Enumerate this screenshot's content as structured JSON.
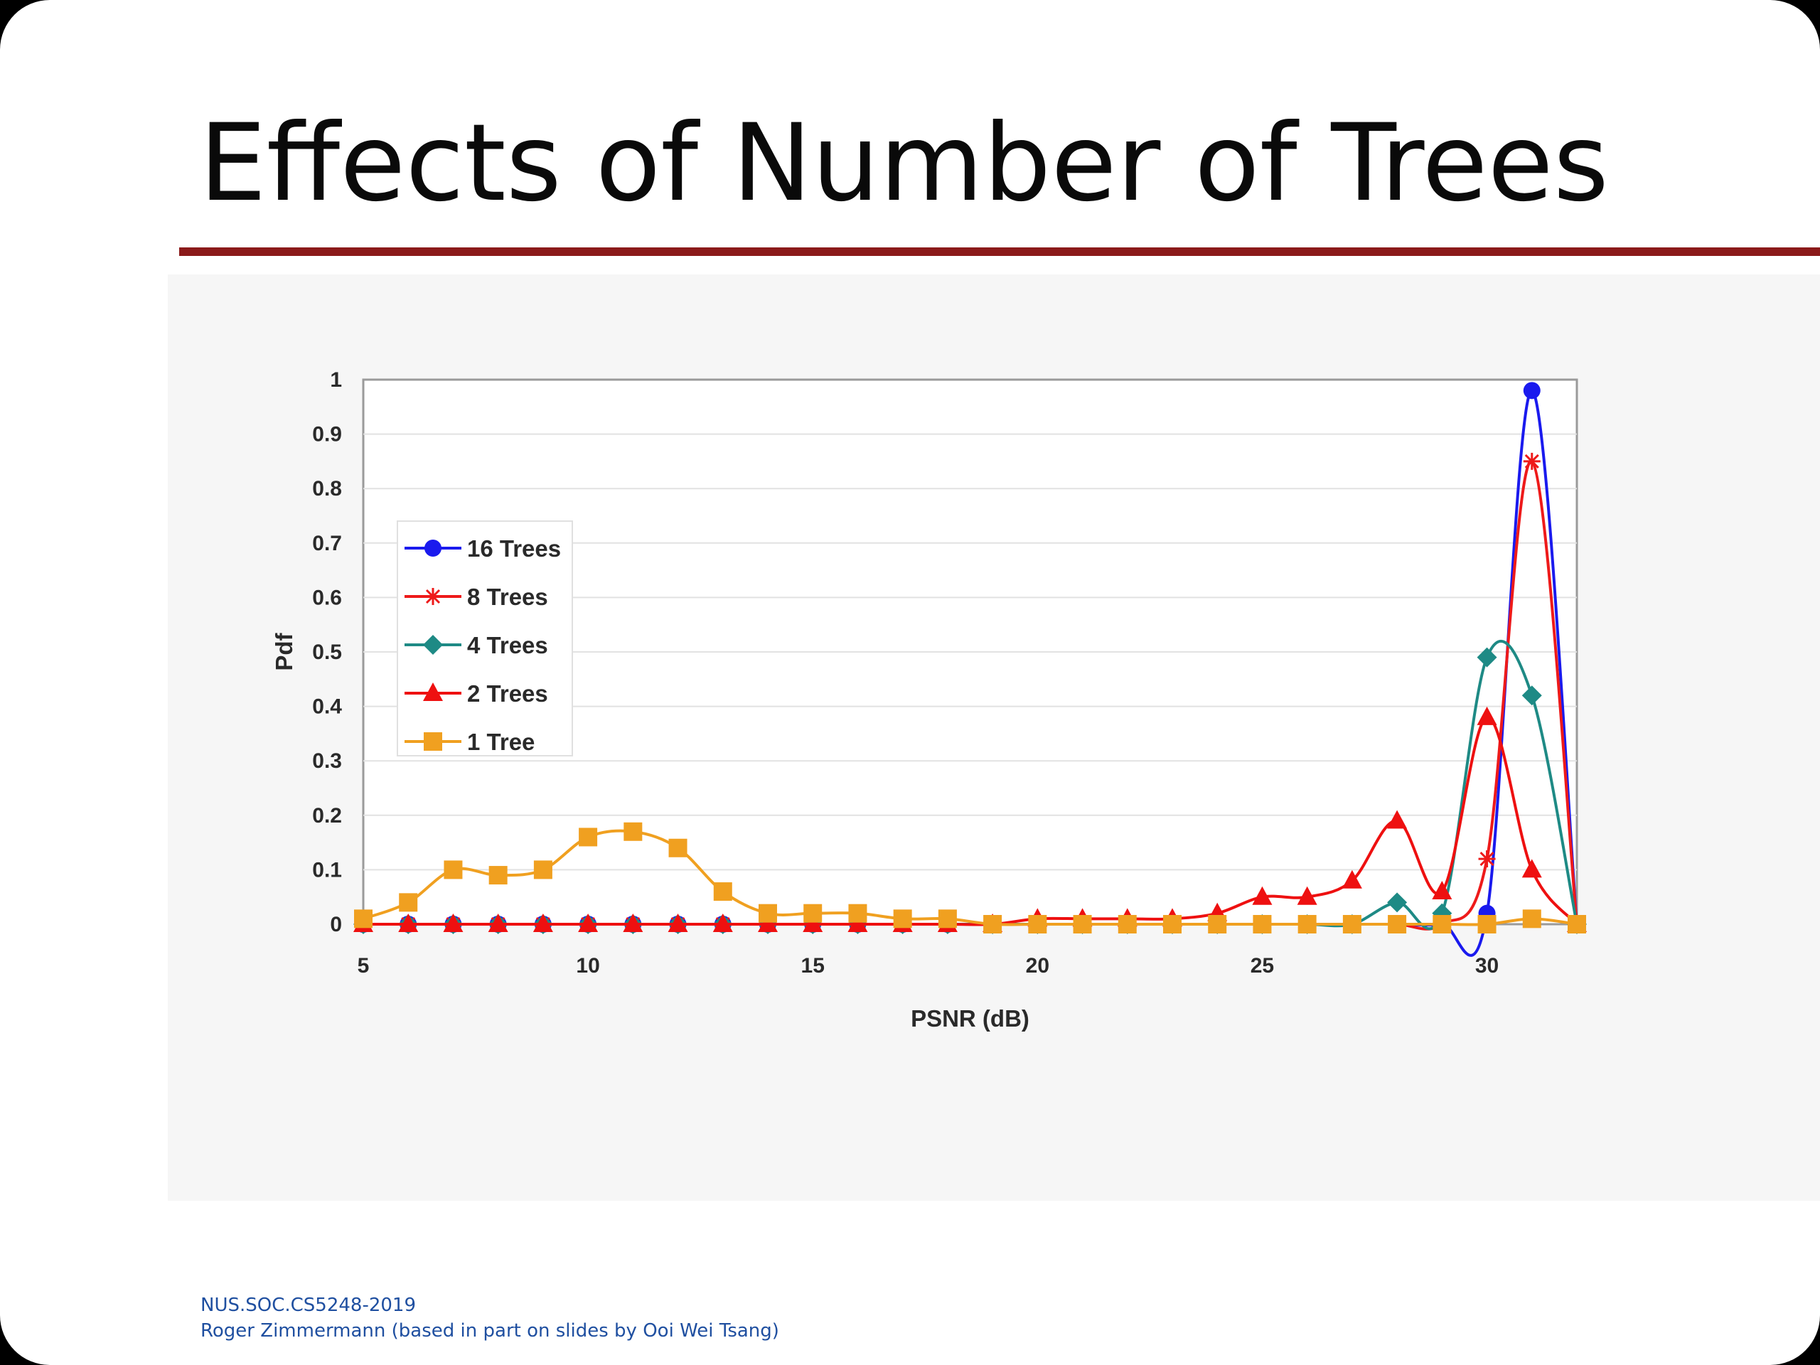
{
  "slide": {
    "title": "Effects of Number of Trees",
    "footer_line1": "NUS.SOC.CS5248-2019",
    "footer_line2": "Roger Zimmermann (based in part on slides by Ooi Wei Tsang)"
  },
  "colors": {
    "title_rule": "#8b1a1a",
    "footer_text": "#1f4fa0",
    "plot_background": "#ffffff",
    "panel_background": "#f6f6f6"
  },
  "chart_data": {
    "type": "line",
    "xlabel": "PSNR (dB)",
    "ylabel": "Pdf",
    "xlim": [
      5,
      32
    ],
    "ylim": [
      0,
      1
    ],
    "xticks": [
      "5",
      "10",
      "15",
      "20",
      "25",
      "30"
    ],
    "yticks": [
      "0",
      "0.1",
      "0.2",
      "0.3",
      "0.4",
      "0.5",
      "0.6",
      "0.7",
      "0.8",
      "0.9",
      "1"
    ],
    "grid": "horizontal",
    "legend_position": "left",
    "x": [
      5,
      6,
      7,
      8,
      9,
      10,
      11,
      12,
      13,
      14,
      15,
      16,
      17,
      18,
      19,
      20,
      21,
      22,
      23,
      24,
      25,
      26,
      27,
      28,
      29,
      30,
      31,
      32
    ],
    "series": [
      {
        "name": "16 Trees",
        "color": "#1a1aee",
        "marker": "circle",
        "values": [
          0,
          0,
          0,
          0,
          0,
          0,
          0,
          0,
          0,
          0,
          0,
          0,
          0,
          0,
          0,
          0,
          0,
          0,
          0,
          0,
          0,
          0,
          0,
          0,
          0,
          0.02,
          0.98,
          0
        ]
      },
      {
        "name": "8 Trees",
        "color": "#ee1a1a",
        "marker": "star",
        "values": [
          0,
          0,
          0,
          0,
          0,
          0,
          0,
          0,
          0,
          0,
          0,
          0,
          0,
          0,
          0,
          0,
          0,
          0,
          0,
          0,
          0,
          0,
          0,
          0,
          0,
          0.12,
          0.85,
          0
        ]
      },
      {
        "name": "4 Trees",
        "color": "#1e8a85",
        "marker": "diamond",
        "values": [
          0,
          0,
          0,
          0,
          0,
          0,
          0,
          0,
          0,
          0,
          0,
          0,
          0,
          0,
          0,
          0,
          0,
          0,
          0,
          0,
          0,
          0,
          0,
          0.04,
          0.02,
          0.49,
          0.42,
          0
        ]
      },
      {
        "name": "2 Trees",
        "color": "#ee1010",
        "marker": "triangle",
        "values": [
          0,
          0,
          0,
          0,
          0,
          0,
          0,
          0,
          0,
          0,
          0,
          0,
          0,
          0,
          0,
          0.01,
          0.01,
          0.01,
          0.01,
          0.02,
          0.05,
          0.05,
          0.08,
          0.19,
          0.06,
          0.38,
          0.1,
          0
        ]
      },
      {
        "name": "1 Tree",
        "color": "#f0a020",
        "marker": "square",
        "values": [
          0.01,
          0.04,
          0.1,
          0.09,
          0.1,
          0.16,
          0.17,
          0.14,
          0.06,
          0.02,
          0.02,
          0.02,
          0.01,
          0.01,
          0,
          0,
          0,
          0,
          0,
          0,
          0,
          0,
          0,
          0,
          0,
          0,
          0.01,
          0
        ]
      }
    ]
  }
}
